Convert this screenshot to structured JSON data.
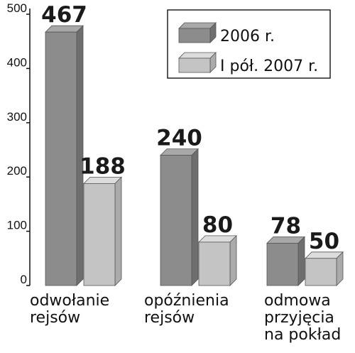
{
  "chart_data": {
    "type": "bar",
    "categories": [
      [
        "odwołanie",
        "rejsów"
      ],
      [
        "opóźnienia",
        "rejsów"
      ],
      [
        "odmowa",
        "przyjęcia",
        "na pokład"
      ]
    ],
    "series": [
      {
        "name": "2006 r.",
        "values": [
          467,
          240,
          78
        ]
      },
      {
        "name": "I pół. 2007 r.",
        "values": [
          188,
          80,
          50
        ]
      }
    ],
    "ylim": [
      0,
      500
    ],
    "yticks": [
      0,
      100,
      200,
      300,
      400,
      500
    ],
    "legend_position": "top-right",
    "grid": false,
    "colors": {
      "series1_front": "#8c8c8c",
      "series1_side": "#6e6e6e",
      "series1_top": "#a8a8a8",
      "series2_front": "#c4c4c4",
      "series2_side": "#ababab",
      "series2_top": "#dcdcdc",
      "axis": "#111111"
    }
  }
}
